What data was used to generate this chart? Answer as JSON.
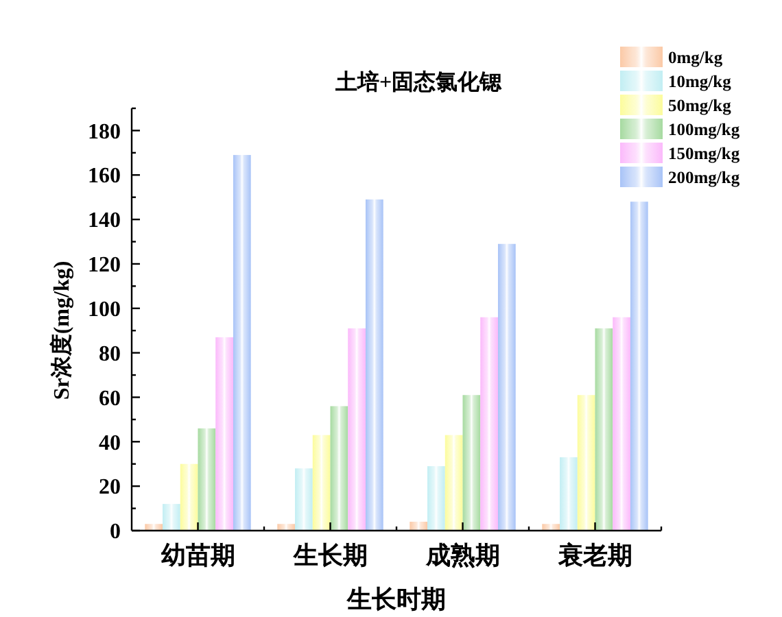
{
  "chart_data": {
    "type": "bar",
    "title": "土培+固态氯化锶",
    "xlabel": "生长时期",
    "ylabel": "Sr浓度(mg/kg)",
    "categories": [
      "幼苗期",
      "生长期",
      "成熟期",
      "衰老期"
    ],
    "series": [
      {
        "name": "0mg/kg",
        "color": "#fbc9a6",
        "values": [
          3,
          3,
          4,
          3
        ]
      },
      {
        "name": "10mg/kg",
        "color": "#c2eef3",
        "values": [
          12,
          28,
          29,
          33
        ]
      },
      {
        "name": "50mg/kg",
        "color": "#fcfc9c",
        "values": [
          30,
          43,
          43,
          61
        ]
      },
      {
        "name": "100mg/kg",
        "color": "#a6daa0",
        "values": [
          46,
          56,
          61,
          91
        ]
      },
      {
        "name": "150mg/kg",
        "color": "#fbb9fb",
        "values": [
          87,
          91,
          96,
          96
        ]
      },
      {
        "name": "200mg/kg",
        "color": "#a8c3f7",
        "values": [
          169,
          149,
          129,
          148
        ]
      }
    ],
    "ylim": [
      0,
      190
    ],
    "yticks": [
      0,
      {
        "value": 10,
        "label": null
      },
      20,
      {
        "value": 30,
        "label": null
      },
      40,
      {
        "value": 50,
        "label": null
      },
      60,
      {
        "value": 70,
        "label": null
      },
      80,
      {
        "value": 90,
        "label": null
      },
      100,
      {
        "value": 110,
        "label": null
      },
      120,
      {
        "value": 130,
        "label": null
      },
      140,
      {
        "value": 150,
        "label": null
      },
      160,
      {
        "value": 170,
        "label": null
      },
      180,
      {
        "value": 190,
        "label": null
      }
    ],
    "legend": "top right"
  }
}
